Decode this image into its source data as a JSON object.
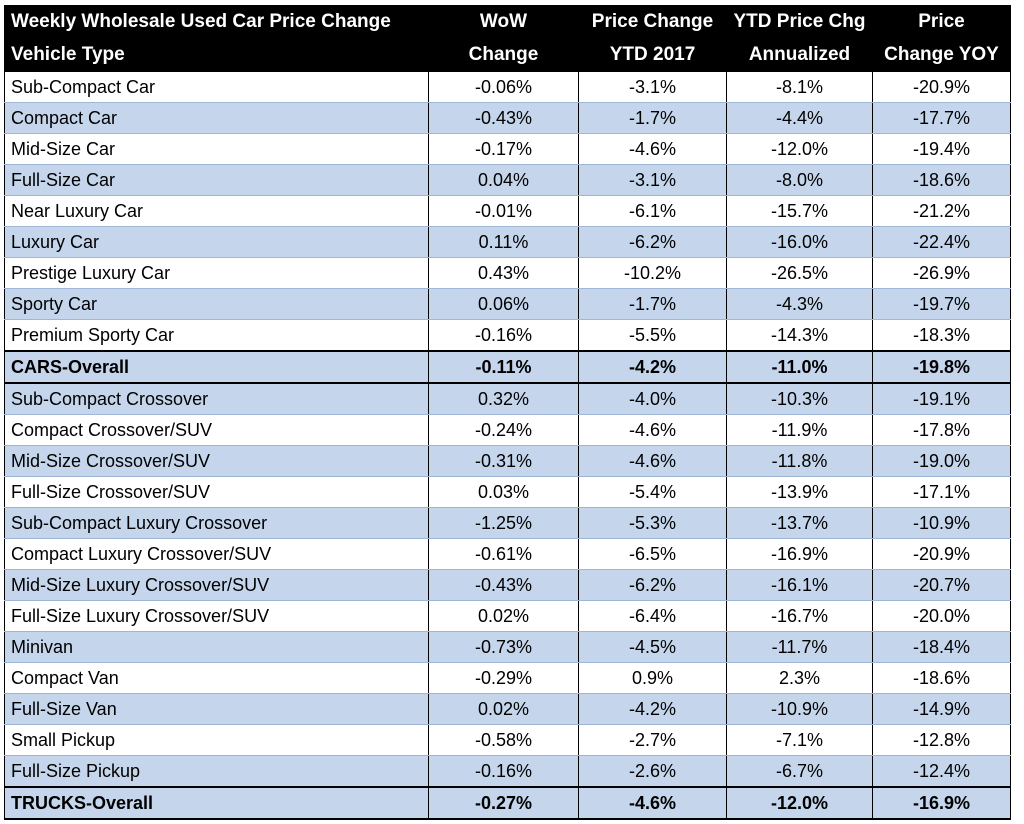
{
  "chart_data": {
    "type": "table",
    "columns": [
      [
        "Weekly Wholesale Used Car Price Change",
        "Vehicle Type"
      ],
      [
        "WoW",
        "Change"
      ],
      [
        "Price Change",
        "YTD 2017"
      ],
      [
        "YTD Price Chg",
        "Annualized"
      ],
      [
        "Price",
        "Change YOY"
      ]
    ],
    "rows": [
      {
        "name": "Sub-Compact Car",
        "values": [
          "-0.06%",
          "-3.1%",
          "-8.1%",
          "-20.9%"
        ]
      },
      {
        "name": "Compact Car",
        "values": [
          "-0.43%",
          "-1.7%",
          "-4.4%",
          "-17.7%"
        ]
      },
      {
        "name": "Mid-Size Car",
        "values": [
          "-0.17%",
          "-4.6%",
          "-12.0%",
          "-19.4%"
        ]
      },
      {
        "name": "Full-Size Car",
        "values": [
          "0.04%",
          "-3.1%",
          "-8.0%",
          "-18.6%"
        ]
      },
      {
        "name": "Near Luxury Car",
        "values": [
          "-0.01%",
          "-6.1%",
          "-15.7%",
          "-21.2%"
        ]
      },
      {
        "name": "Luxury Car",
        "values": [
          "0.11%",
          "-6.2%",
          "-16.0%",
          "-22.4%"
        ]
      },
      {
        "name": "Prestige Luxury Car",
        "values": [
          "0.43%",
          "-10.2%",
          "-26.5%",
          "-26.9%"
        ]
      },
      {
        "name": "Sporty Car",
        "values": [
          "0.06%",
          "-1.7%",
          "-4.3%",
          "-19.7%"
        ]
      },
      {
        "name": "Premium Sporty Car",
        "values": [
          "-0.16%",
          "-5.5%",
          "-14.3%",
          "-18.3%"
        ]
      },
      {
        "name": "CARS-Overall",
        "values": [
          "-0.11%",
          "-4.2%",
          "-11.0%",
          "-19.8%"
        ],
        "total": true
      },
      {
        "name": "Sub-Compact Crossover",
        "values": [
          "0.32%",
          "-4.0%",
          "-10.3%",
          "-19.1%"
        ]
      },
      {
        "name": "Compact Crossover/SUV",
        "values": [
          "-0.24%",
          "-4.6%",
          "-11.9%",
          "-17.8%"
        ]
      },
      {
        "name": "Mid-Size Crossover/SUV",
        "values": [
          "-0.31%",
          "-4.6%",
          "-11.8%",
          "-19.0%"
        ]
      },
      {
        "name": "Full-Size Crossover/SUV",
        "values": [
          "0.03%",
          "-5.4%",
          "-13.9%",
          "-17.1%"
        ]
      },
      {
        "name": "Sub-Compact Luxury Crossover",
        "values": [
          "-1.25%",
          "-5.3%",
          "-13.7%",
          "-10.9%"
        ]
      },
      {
        "name": "Compact Luxury Crossover/SUV",
        "values": [
          "-0.61%",
          "-6.5%",
          "-16.9%",
          "-20.9%"
        ]
      },
      {
        "name": "Mid-Size Luxury Crossover/SUV",
        "values": [
          "-0.43%",
          "-6.2%",
          "-16.1%",
          "-20.7%"
        ]
      },
      {
        "name": "Full-Size Luxury Crossover/SUV",
        "values": [
          "0.02%",
          "-6.4%",
          "-16.7%",
          "-20.0%"
        ]
      },
      {
        "name": "Minivan",
        "values": [
          "-0.73%",
          "-4.5%",
          "-11.7%",
          "-18.4%"
        ]
      },
      {
        "name": "Compact Van",
        "values": [
          "-0.29%",
          "0.9%",
          "2.3%",
          "-18.6%"
        ]
      },
      {
        "name": "Full-Size Van",
        "values": [
          "0.02%",
          "-4.2%",
          "-10.9%",
          "-14.9%"
        ]
      },
      {
        "name": "Small Pickup",
        "values": [
          "-0.58%",
          "-2.7%",
          "-7.1%",
          "-12.8%"
        ]
      },
      {
        "name": "Full-Size Pickup",
        "values": [
          "-0.16%",
          "-2.6%",
          "-6.7%",
          "-12.4%"
        ]
      },
      {
        "name": "TRUCKS-Overall",
        "values": [
          "-0.27%",
          "-4.6%",
          "-12.0%",
          "-16.9%"
        ],
        "total": true
      }
    ],
    "colors": {
      "header_bg": "#000000",
      "header_text": "#ffffff",
      "band": "#c5d6ec",
      "plain": "#ffffff"
    }
  }
}
